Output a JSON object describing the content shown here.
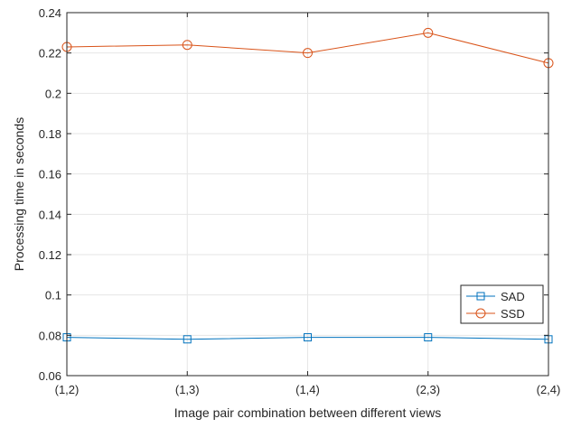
{
  "chart_data": {
    "type": "line",
    "title": "",
    "xlabel": "Image pair combination between different views",
    "ylabel": "Processing time in seconds",
    "categories": [
      "(1,2)",
      "(1,3)",
      "(1,4)",
      "(2,3)",
      "(2,4)"
    ],
    "ylim": [
      0.06,
      0.24
    ],
    "yticks": [
      0.06,
      0.08,
      0.1,
      0.12,
      0.14,
      0.16,
      0.18,
      0.2,
      0.22,
      0.24
    ],
    "ytick_labels": [
      "0.06",
      "0.08",
      "0.1",
      "0.12",
      "0.14",
      "0.16",
      "0.18",
      "0.2",
      "0.22",
      "0.24"
    ],
    "grid": true,
    "legend_position": "lower-right",
    "series": [
      {
        "name": "SAD",
        "values": [
          0.079,
          0.078,
          0.079,
          0.079,
          0.078
        ],
        "color": "#0072BD",
        "marker": "square"
      },
      {
        "name": "SSD",
        "values": [
          0.223,
          0.224,
          0.22,
          0.23,
          0.215
        ],
        "color": "#D95319",
        "marker": "circle"
      }
    ]
  }
}
